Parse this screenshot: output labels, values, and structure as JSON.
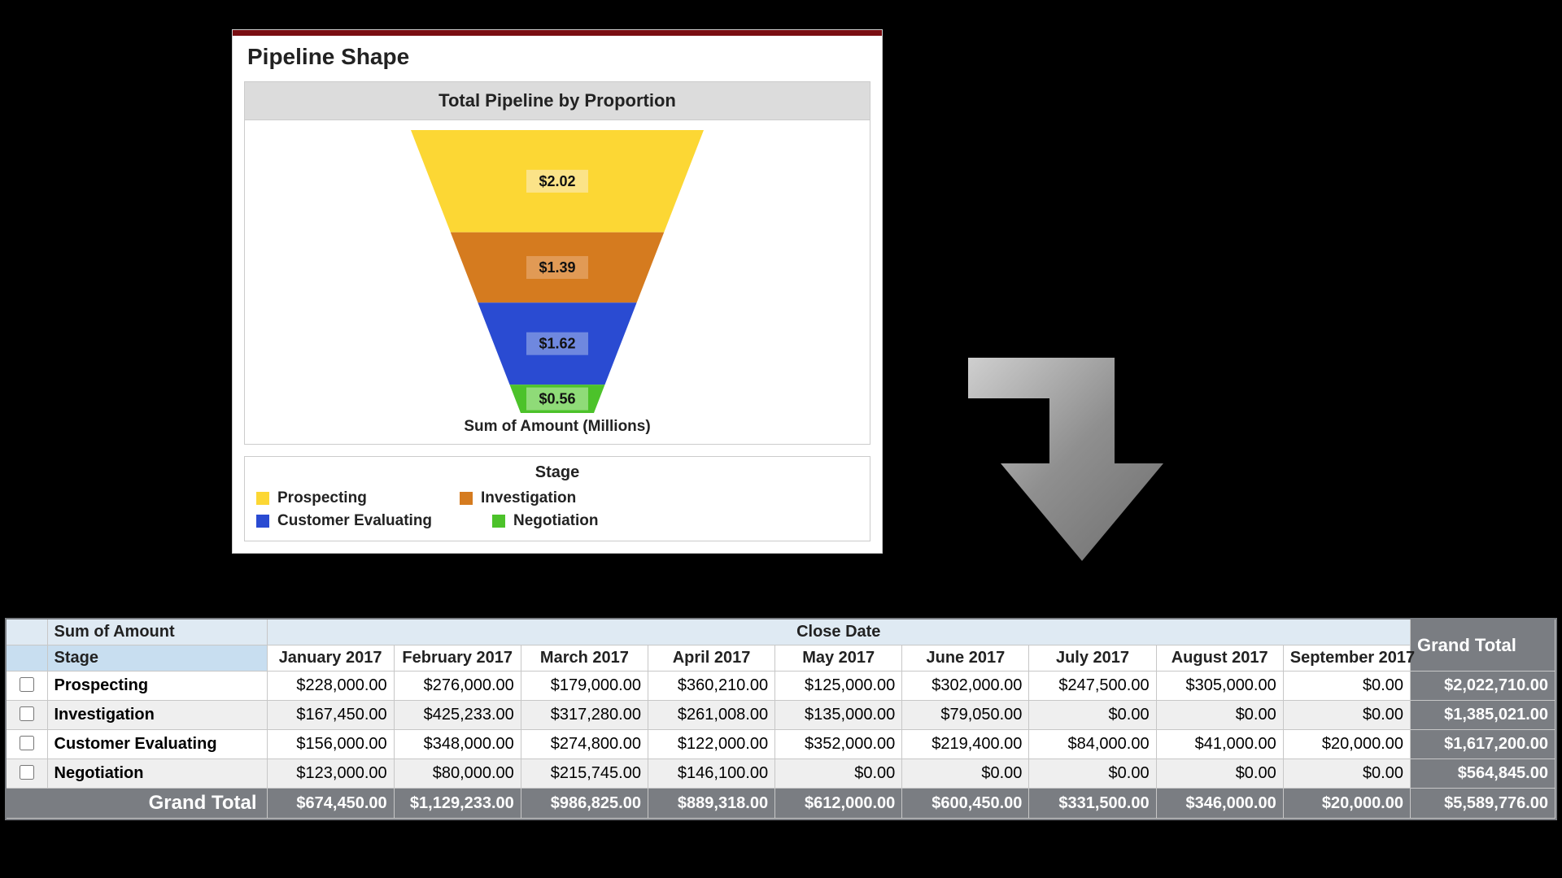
{
  "card": {
    "title": "Pipeline Shape",
    "topbar_color": "#7a0e12",
    "chart_title": "Total Pipeline by Proportion",
    "caption": "Sum of Amount (Millions)",
    "legend_title": "Stage",
    "chart": {
      "type": "funnel",
      "background_color": "#ffffff",
      "title_fontsize": 22,
      "caption_fontsize": 19,
      "segments": [
        {
          "name": "Prospecting",
          "label": "$2.02",
          "value": 2.02,
          "color": "#fcd734",
          "label_bg": "#fbe388"
        },
        {
          "name": "Investigation",
          "label": "$1.39",
          "value": 1.39,
          "color": "#d57b1f",
          "label_bg": "#e19a55"
        },
        {
          "name": "Customer Evaluating",
          "label": "$1.62",
          "value": 1.62,
          "color": "#2a4bd2",
          "label_bg": "#6f88df"
        },
        {
          "name": "Negotiation",
          "label": "$0.56",
          "value": 0.56,
          "color": "#4cc22a",
          "label_bg": "#8fdb78"
        }
      ]
    }
  },
  "arrow": {
    "color_light": "#bcbcbc",
    "color_dark": "#6e6e6e"
  },
  "pivot": {
    "metric_label": "Sum of Amount",
    "group_label": "Close Date",
    "stage_label": "Stage",
    "grand_total_label": "Grand Total",
    "header_bg_light": "#dfeaf3",
    "header_bg_stage": "#c8def0",
    "dark_bg": "#7a7d82",
    "months": [
      "January 2017",
      "February 2017",
      "March 2017",
      "April 2017",
      "May 2017",
      "June 2017",
      "July 2017",
      "August 2017",
      "September 2017"
    ],
    "rows": [
      {
        "stage": "Prospecting",
        "values": [
          "$228,000.00",
          "$276,000.00",
          "$179,000.00",
          "$360,210.00",
          "$125,000.00",
          "$302,000.00",
          "$247,500.00",
          "$305,000.00",
          "$0.00"
        ],
        "total": "$2,022,710.00"
      },
      {
        "stage": "Investigation",
        "values": [
          "$167,450.00",
          "$425,233.00",
          "$317,280.00",
          "$261,008.00",
          "$135,000.00",
          "$79,050.00",
          "$0.00",
          "$0.00",
          "$0.00"
        ],
        "total": "$1,385,021.00"
      },
      {
        "stage": "Customer Evaluating",
        "values": [
          "$156,000.00",
          "$348,000.00",
          "$274,800.00",
          "$122,000.00",
          "$352,000.00",
          "$219,400.00",
          "$84,000.00",
          "$41,000.00",
          "$20,000.00"
        ],
        "total": "$1,617,200.00"
      },
      {
        "stage": "Negotiation",
        "values": [
          "$123,000.00",
          "$80,000.00",
          "$215,745.00",
          "$146,100.00",
          "$0.00",
          "$0.00",
          "$0.00",
          "$0.00",
          "$0.00"
        ],
        "total": "$564,845.00"
      }
    ],
    "grand_totals": [
      "$674,450.00",
      "$1,129,233.00",
      "$986,825.00",
      "$889,318.00",
      "$612,000.00",
      "$600,450.00",
      "$331,500.00",
      "$346,000.00",
      "$20,000.00"
    ],
    "grand_total_total": "$5,589,776.00"
  }
}
